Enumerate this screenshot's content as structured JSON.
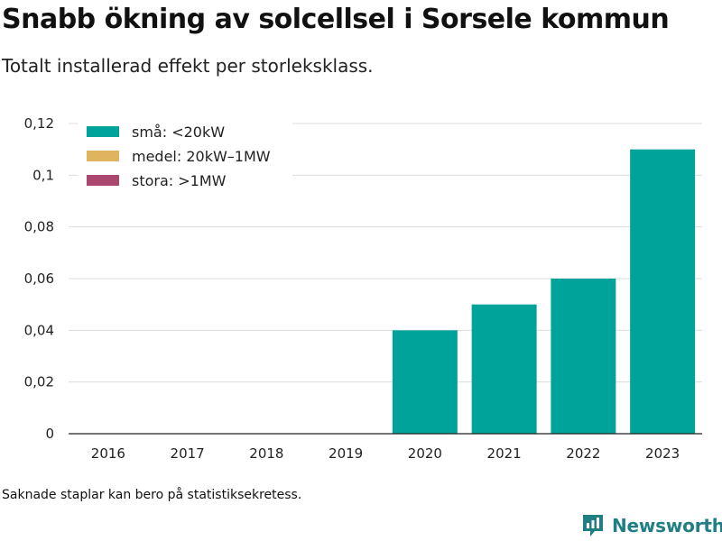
{
  "title": "Snabb ökning av solcellsel i Sorsele kommun",
  "subtitle": "Totalt installerad effekt per storleksklass.",
  "footnote": "Saknade staplar kan bero på statistiksekretess.",
  "brand": {
    "name": "Newsworthy",
    "icon": "newsworthy-logo-icon",
    "color": "#1f7f84"
  },
  "chart_data": {
    "type": "bar",
    "stacked": true,
    "title": "",
    "xlabel": "",
    "ylabel": "",
    "categories": [
      "2016",
      "2017",
      "2018",
      "2019",
      "2020",
      "2021",
      "2022",
      "2023"
    ],
    "series": [
      {
        "name": "små: <20kW",
        "color": "#00a39a",
        "values": [
          0,
          0,
          0,
          0,
          0.04,
          0.05,
          0.06,
          0.11
        ]
      },
      {
        "name": "medel: 20kW–1MW",
        "color": "#e0b35f",
        "values": [
          0,
          0,
          0,
          0,
          0,
          0,
          0,
          0
        ]
      },
      {
        "name": "stora: >1MW",
        "color": "#a9476f",
        "values": [
          0,
          0,
          0,
          0,
          0,
          0,
          0,
          0
        ]
      }
    ],
    "ylim": [
      0,
      0.12
    ],
    "yticks": [
      0,
      0.02,
      0.04,
      0.06,
      0.08,
      0.1,
      0.12
    ],
    "ytick_labels": [
      "0",
      "0,02",
      "0,04",
      "0,06",
      "0,08",
      "0,1",
      "0,12"
    ],
    "grid": true,
    "legend_position": "top-left"
  }
}
